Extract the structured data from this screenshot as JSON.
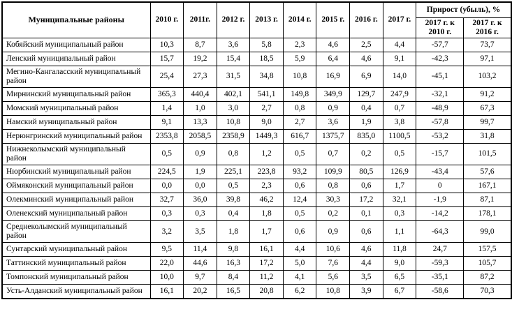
{
  "table": {
    "header": {
      "districts": "Муниципальные районы",
      "years": [
        "2010 г.",
        "2011г.",
        "2012 г.",
        "2013 г.",
        "2014 г.",
        "2015 г.",
        "2016 г.",
        "2017 г."
      ],
      "growth_title": "Прирост (убыль), %",
      "growth_cols": [
        "2017 г. к 2010 г.",
        "2017 г. к 2016 г."
      ]
    },
    "rows": [
      {
        "name": "Кобяйский муниципальный район",
        "values": [
          "10,3",
          "8,7",
          "3,6",
          "5,8",
          "2,3",
          "4,6",
          "2,5",
          "4,4"
        ],
        "growth": [
          "-57,7",
          "73,7"
        ]
      },
      {
        "name": "Ленский муниципальный район",
        "values": [
          "15,7",
          "19,2",
          "15,4",
          "18,5",
          "5,9",
          "6,4",
          "4,6",
          "9,1"
        ],
        "growth": [
          "-42,3",
          "97,1"
        ]
      },
      {
        "name": "Мегино-Кангаласский муниципальный район",
        "values": [
          "25,4",
          "27,3",
          "31,5",
          "34,8",
          "10,8",
          "16,9",
          "6,9",
          "14,0"
        ],
        "growth": [
          "-45,1",
          "103,2"
        ]
      },
      {
        "name": "Мирнинский муниципальный район",
        "values": [
          "365,3",
          "440,4",
          "402,1",
          "541,1",
          "149,8",
          "349,9",
          "129,7",
          "247,9"
        ],
        "growth": [
          "-32,1",
          "91,2"
        ]
      },
      {
        "name": "Момский муниципальный район",
        "values": [
          "1,4",
          "1,0",
          "3,0",
          "2,7",
          "0,8",
          "0,9",
          "0,4",
          "0,7"
        ],
        "growth": [
          "-48,9",
          "67,3"
        ]
      },
      {
        "name": "Намский муниципальный район",
        "values": [
          "9,1",
          "13,3",
          "10,8",
          "9,0",
          "2,7",
          "3,6",
          "1,9",
          "3,8"
        ],
        "growth": [
          "-57,8",
          "99,7"
        ]
      },
      {
        "name": "Нерюнгринский муниципальный район",
        "values": [
          "2353,8",
          "2058,5",
          "2358,9",
          "1449,3",
          "616,7",
          "1375,7",
          "835,0",
          "1100,5"
        ],
        "growth": [
          "-53,2",
          "31,8"
        ]
      },
      {
        "name": "Нижнеколымский муниципальный район",
        "values": [
          "0,5",
          "0,9",
          "0,8",
          "1,2",
          "0,5",
          "0,7",
          "0,2",
          "0,5"
        ],
        "growth": [
          "-15,7",
          "101,5"
        ]
      },
      {
        "name": "Нюрбинский муниципальный район",
        "values": [
          "224,5",
          "1,9",
          "225,1",
          "223,8",
          "93,2",
          "109,9",
          "80,5",
          "126,9"
        ],
        "growth": [
          "-43,4",
          "57,6"
        ]
      },
      {
        "name": "Оймяконский муниципальный район",
        "values": [
          "0,0",
          "0,0",
          "0,5",
          "2,3",
          "0,6",
          "0,8",
          "0,6",
          "1,7"
        ],
        "growth": [
          "0",
          "167,1"
        ]
      },
      {
        "name": "Олекминский муниципальный район",
        "values": [
          "32,7",
          "36,0",
          "39,8",
          "46,2",
          "12,4",
          "30,3",
          "17,2",
          "32,1"
        ],
        "growth": [
          "-1,9",
          "87,1"
        ]
      },
      {
        "name": "Оленекский муниципальный район",
        "values": [
          "0,3",
          "0,3",
          "0,4",
          "1,8",
          "0,5",
          "0,2",
          "0,1",
          "0,3"
        ],
        "growth": [
          "-14,2",
          "178,1"
        ]
      },
      {
        "name": "Среднеколымский муниципальный район",
        "values": [
          "3,2",
          "3,5",
          "1,8",
          "1,7",
          "0,6",
          "0,9",
          "0,6",
          "1,1"
        ],
        "growth": [
          "-64,3",
          "99,0"
        ]
      },
      {
        "name": "Сунтарский муниципальный район",
        "values": [
          "9,5",
          "11,4",
          "9,8",
          "16,1",
          "4,4",
          "10,6",
          "4,6",
          "11,8"
        ],
        "growth": [
          "24,7",
          "157,5"
        ]
      },
      {
        "name": "Таттинский муниципальный район",
        "values": [
          "22,0",
          "44,6",
          "16,3",
          "17,2",
          "5,0",
          "7,6",
          "4,4",
          "9,0"
        ],
        "growth": [
          "-59,3",
          "105,7"
        ]
      },
      {
        "name": "Томпонский муниципальный район",
        "values": [
          "10,0",
          "9,7",
          "8,4",
          "11,2",
          "4,1",
          "5,6",
          "3,5",
          "6,5"
        ],
        "growth": [
          "-35,1",
          "87,2"
        ]
      },
      {
        "name": "Усть-Алданский муниципальный район",
        "values": [
          "16,1",
          "20,2",
          "16,5",
          "20,8",
          "6,2",
          "10,8",
          "3,9",
          "6,7"
        ],
        "growth": [
          "-58,6",
          "70,3"
        ]
      }
    ]
  }
}
